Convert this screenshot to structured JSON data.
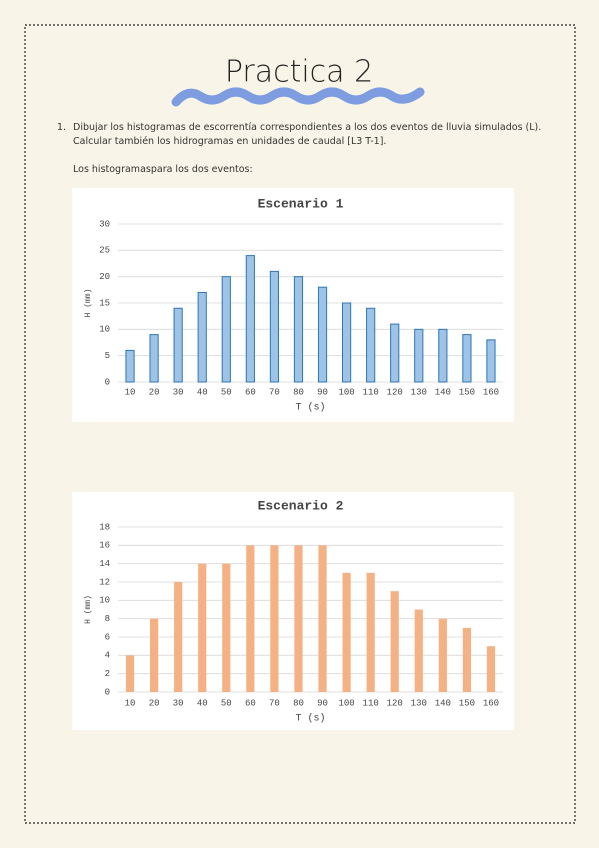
{
  "document": {
    "title": "Practica 2",
    "item_number": "1.",
    "instruction_line1": "Dibujar los histogramas de escorrentía correspondientes a los dos eventos de lluvia simulados (L).",
    "instruction_line2": "Calcular también los hidrogramas en unidades de caudal [L3 T-1].",
    "intro": "Los histogramaspara los dos eventos:"
  },
  "chart_data": [
    {
      "type": "bar",
      "title": "Escenario 1",
      "xlabel": "T (s)",
      "ylabel": "H (mm)",
      "categories": [
        "10",
        "20",
        "30",
        "40",
        "50",
        "60",
        "70",
        "80",
        "90",
        "100",
        "110",
        "120",
        "130",
        "140",
        "150",
        "160"
      ],
      "values": [
        6,
        9,
        14,
        17,
        20,
        24,
        21,
        20,
        18,
        15,
        14,
        11,
        10,
        10,
        9,
        8
      ],
      "color": "#9dc3e6",
      "edgecolor": "#2e75b6",
      "ylim": [
        0,
        30
      ],
      "yticks": [
        0,
        5,
        10,
        15,
        20,
        25,
        30
      ],
      "grid": true
    },
    {
      "type": "bar",
      "title": "Escenario 2",
      "xlabel": "T (s)",
      "ylabel": "H (mm)",
      "categories": [
        "10",
        "20",
        "30",
        "40",
        "50",
        "60",
        "70",
        "80",
        "90",
        "100",
        "110",
        "120",
        "130",
        "140",
        "150",
        "160"
      ],
      "values": [
        4,
        8,
        12,
        14,
        14,
        16,
        16,
        16,
        16,
        13,
        13,
        11,
        9,
        8,
        7,
        5
      ],
      "color": "#f4b183",
      "ylim": [
        0,
        18
      ],
      "yticks": [
        0,
        2,
        4,
        6,
        8,
        10,
        12,
        14,
        16,
        18
      ],
      "grid": true
    }
  ]
}
